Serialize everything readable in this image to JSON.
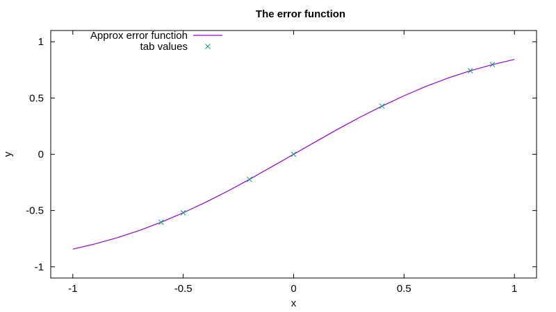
{
  "chart_data": {
    "type": "line",
    "title": "The error function",
    "xlabel": "x",
    "ylabel": "y",
    "xlim": [
      -1.1,
      1.1
    ],
    "ylim": [
      -1.1,
      1.1
    ],
    "x_ticks": [
      -1,
      -0.5,
      0,
      0.5,
      1
    ],
    "y_ticks": [
      -1,
      -0.5,
      0,
      0.5,
      1
    ],
    "x_tick_labels": [
      "-1",
      "-0.5",
      "0",
      "0.5",
      "1"
    ],
    "y_tick_labels": [
      "-1",
      "-0.5",
      "0",
      "0.5",
      "1"
    ],
    "grid": false,
    "legend_position": "top-left",
    "series": [
      {
        "name": "Approx error function",
        "kind": "line",
        "color": "#9400d3",
        "x": [
          -1,
          -0.9,
          -0.8,
          -0.7,
          -0.6,
          -0.5,
          -0.4,
          -0.3,
          -0.2,
          -0.1,
          0,
          0.1,
          0.2,
          0.3,
          0.4,
          0.5,
          0.6,
          0.7,
          0.8,
          0.9,
          1
        ],
        "y": [
          -0.843,
          -0.797,
          -0.742,
          -0.678,
          -0.604,
          -0.52,
          -0.428,
          -0.329,
          -0.223,
          -0.112,
          0,
          0.112,
          0.223,
          0.329,
          0.428,
          0.52,
          0.604,
          0.678,
          0.742,
          0.797,
          0.843
        ]
      },
      {
        "name": "tab values",
        "kind": "scatter",
        "marker": "x",
        "color": "#009e73",
        "x": [
          -0.6,
          -0.5,
          -0.2,
          0,
          0.4,
          0.8,
          0.9
        ],
        "y": [
          -0.604,
          -0.52,
          -0.223,
          0,
          0.428,
          0.742,
          0.797
        ]
      }
    ]
  }
}
